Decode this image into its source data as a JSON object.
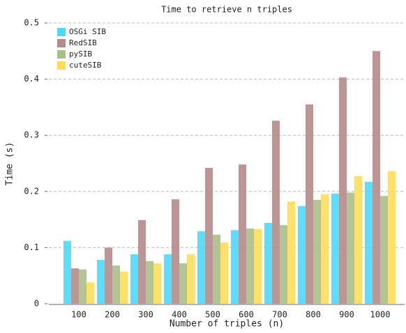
{
  "chart_data": {
    "type": "bar",
    "title": "Time to retrieve n triples",
    "x_label": "Number of triples (n)",
    "y_label": "Time (s)",
    "categories": [
      "100",
      "200",
      "300",
      "400",
      "500",
      "600",
      "700",
      "800",
      "900",
      "1000"
    ],
    "series": [
      {
        "name": "OSGi SIB",
        "color": "#4dd8f8",
        "values": [
          0.112,
          0.078,
          0.088,
          0.088,
          0.129,
          0.131,
          0.144,
          0.174,
          0.196,
          0.217
        ]
      },
      {
        "name": "RedSIB",
        "color": "#b58a8a",
        "values": [
          0.063,
          0.1,
          0.149,
          0.186,
          0.242,
          0.248,
          0.326,
          0.355,
          0.403,
          0.45
        ]
      },
      {
        "name": "pySIB",
        "color": "#a7be88",
        "values": [
          0.061,
          0.068,
          0.076,
          0.072,
          0.123,
          0.134,
          0.14,
          0.185,
          0.198,
          0.192
        ]
      },
      {
        "name": "cuteSIB",
        "color": "#fddc5c",
        "values": [
          0.038,
          0.057,
          0.072,
          0.088,
          0.109,
          0.133,
          0.182,
          0.195,
          0.227,
          0.236
        ]
      }
    ],
    "ylim": [
      0,
      0.5
    ],
    "yticks": [
      0,
      0.1,
      0.2,
      0.3,
      0.4,
      0.5
    ],
    "grid": true,
    "legend": "upper-left"
  }
}
